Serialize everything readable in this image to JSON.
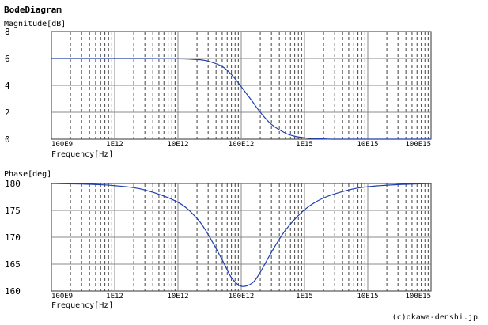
{
  "app_title": "BodeDiagram",
  "copyright": "(c)okawa-denshi.jp",
  "colors": {
    "curve": "#1f3fb0",
    "grid": "#888888",
    "minor_grid": "#444444"
  },
  "chart_data": [
    {
      "type": "line",
      "ylabel": "Magnitude[dB]",
      "xlabel": "Frequency[Hz]",
      "xscale": "log",
      "xlim": [
        100000000000.0,
        1e+17
      ],
      "ylim": [
        0,
        8
      ],
      "yticks": [
        "0",
        "2",
        "4",
        "6",
        "8"
      ],
      "xtick_labels": [
        "100E9",
        "1E12",
        "10E12",
        "100E12",
        "1E15",
        "10E15",
        "100E15"
      ],
      "grid": true,
      "series": [
        {
          "x": [
            100000000000.0,
            300000000000.0,
            1000000000000.0,
            3000000000000.0,
            10000000000000.0,
            20000000000000.0,
            30000000000000.0,
            50000000000000.0,
            70000000000000.0,
            100000000000000.0,
            150000000000000.0,
            200000000000000.0,
            300000000000000.0,
            500000000000000.0,
            700000000000000.0,
            1000000000000000.0,
            1500000000000000.0,
            2000000000000000.0,
            3000000000000000.0,
            1e+16,
            1e+17
          ],
          "values": [
            6.0,
            6.0,
            6.0,
            6.0,
            5.98,
            5.92,
            5.8,
            5.4,
            4.8,
            3.9,
            2.8,
            2.0,
            1.1,
            0.45,
            0.22,
            0.1,
            0.04,
            0.02,
            0.0,
            0.0,
            0.0
          ]
        }
      ]
    },
    {
      "type": "line",
      "ylabel": "Phase[deg]",
      "xlabel": "Frequency[Hz]",
      "xscale": "log",
      "xlim": [
        100000000000.0,
        1e+17
      ],
      "ylim": [
        160,
        180
      ],
      "yticks": [
        "160",
        "165",
        "170",
        "175",
        "180"
      ],
      "xtick_labels": [
        "100E9",
        "1E12",
        "10E12",
        "100E12",
        "1E15",
        "10E15",
        "100E15"
      ],
      "grid": true,
      "series": [
        {
          "x": [
            100000000000.0,
            300000000000.0,
            1000000000000.0,
            3000000000000.0,
            10000000000000.0,
            20000000000000.0,
            30000000000000.0,
            50000000000000.0,
            70000000000000.0,
            100000000000000.0,
            150000000000000.0,
            200000000000000.0,
            300000000000000.0,
            500000000000000.0,
            1000000000000000.0,
            2000000000000000.0,
            5000000000000000.0,
            1e+16,
            3e+16,
            1e+17
          ],
          "values": [
            180.0,
            179.9,
            179.6,
            178.8,
            176.5,
            173.5,
            170.5,
            165.8,
            162.5,
            160.9,
            161.5,
            163.5,
            167.2,
            171.3,
            175.1,
            177.3,
            178.8,
            179.4,
            179.8,
            180.0
          ]
        }
      ]
    }
  ]
}
